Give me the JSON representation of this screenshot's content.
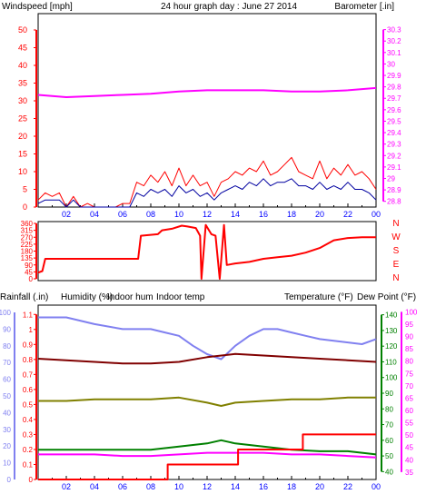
{
  "title": "24 hour graph day : June 27 2014",
  "colors": {
    "wind": "#ff0000",
    "gust_avg": "#0000a0",
    "baro": "#ff00ff",
    "dir": "#ff0000",
    "rain": "#ff0000",
    "humidity": "#8080f0",
    "indoor_hum": "#808000",
    "indoor_temp": "#800000",
    "temperature": "#008000",
    "dew_point": "#ff00ff",
    "title": "#0000c0",
    "axis_blue": "#0000ff"
  },
  "chart_data": [
    {
      "type": "line",
      "name": "wind-baro",
      "left_axis": {
        "label": "Windspeed [mph]",
        "ticks": [
          "0",
          "5",
          "10",
          "15",
          "20",
          "25",
          "30",
          "35",
          "40",
          "45",
          "50"
        ],
        "ylim": [
          0,
          50
        ]
      },
      "right_axis": {
        "label": "Barometer [.in]",
        "ticks": [
          "28.8",
          "28.9",
          "29",
          "29.1",
          "29.2",
          "29.3",
          "29.4",
          "29.5",
          "29.6",
          "29.7",
          "29.8",
          "29.9",
          "30",
          "30.1",
          "30.2",
          "30.3"
        ],
        "ylim": [
          28.75,
          30.4
        ]
      },
      "x_ticks": [
        "02",
        "04",
        "06",
        "08",
        "10",
        "12",
        "14",
        "16",
        "18",
        "20",
        "22",
        "00"
      ],
      "series": [
        {
          "key": "windspeed",
          "color_key": "wind",
          "x": [
            0,
            0.5,
            1,
            1.5,
            2,
            2.5,
            3,
            3.5,
            4,
            4.5,
            5,
            5.5,
            6,
            6.5,
            7,
            7.5,
            8,
            8.5,
            9,
            9.5,
            10,
            10.5,
            11,
            11.5,
            12,
            12.5,
            13,
            13.5,
            14,
            14.5,
            15,
            15.5,
            16,
            16.5,
            17,
            17.5,
            18,
            18.5,
            19,
            19.5,
            20,
            20.5,
            21,
            21.5,
            22,
            22.5,
            23,
            23.5,
            24
          ],
          "values": [
            2,
            4,
            3,
            4,
            0,
            3,
            0,
            1,
            0,
            0,
            0,
            0,
            1,
            1,
            7,
            6,
            9,
            7,
            10,
            6,
            11,
            6,
            9,
            6,
            7,
            3,
            7,
            8,
            10,
            9,
            11,
            10,
            13,
            9,
            10,
            12,
            14,
            10,
            9,
            8,
            13,
            8,
            11,
            9,
            12,
            9,
            10,
            8,
            5
          ]
        },
        {
          "key": "average_wind",
          "color_key": "gust_avg",
          "x": [
            0,
            0.5,
            1,
            1.5,
            2,
            2.5,
            3,
            3.5,
            4,
            4.5,
            5,
            5.5,
            6,
            6.5,
            7,
            7.5,
            8,
            8.5,
            9,
            9.5,
            10,
            10.5,
            11,
            11.5,
            12,
            12.5,
            13,
            13.5,
            14,
            14.5,
            15,
            15.5,
            16,
            16.5,
            17,
            17.5,
            18,
            18.5,
            19,
            19.5,
            20,
            20.5,
            21,
            21.5,
            22,
            22.5,
            23,
            23.5,
            24
          ],
          "values": [
            1,
            2,
            2,
            2,
            0,
            2,
            0,
            0,
            0,
            0,
            0,
            0,
            0,
            0,
            4,
            3,
            5,
            4,
            5,
            3,
            6,
            4,
            5,
            3,
            4,
            2,
            4,
            5,
            6,
            5,
            7,
            6,
            8,
            6,
            7,
            7,
            8,
            6,
            6,
            5,
            7,
            5,
            6,
            5,
            7,
            5,
            5,
            4,
            2
          ]
        },
        {
          "key": "barometer",
          "color_key": "baro",
          "axis": "right",
          "x": [
            0,
            2,
            4,
            6,
            8,
            10,
            12,
            14,
            16,
            18,
            20,
            22,
            24
          ],
          "values": [
            29.73,
            29.71,
            29.72,
            29.73,
            29.74,
            29.76,
            29.77,
            29.77,
            29.77,
            29.76,
            29.76,
            29.77,
            29.79
          ]
        }
      ]
    },
    {
      "type": "line",
      "name": "wind-direction",
      "left_axis": {
        "ticks": [
          "0",
          "45",
          "90",
          "135",
          "180",
          "225",
          "270",
          "315",
          "360"
        ],
        "ylim": [
          0,
          360
        ]
      },
      "right_axis": {
        "ticks": [
          "N",
          "W",
          "S",
          "E",
          "N"
        ]
      },
      "series": [
        {
          "key": "direction",
          "color_key": "dir",
          "x": [
            0,
            0.3,
            0.5,
            7.1,
            7.3,
            8.5,
            8.8,
            9.5,
            10.2,
            10.6,
            11.2,
            11.5,
            11.6,
            11.9,
            12.3,
            12.6,
            12.9,
            13.2,
            13.4,
            14,
            15,
            16,
            17,
            18,
            19,
            20,
            21,
            22,
            23,
            24
          ],
          "values": [
            40,
            50,
            130,
            130,
            280,
            290,
            315,
            325,
            345,
            340,
            330,
            280,
            0,
            350,
            290,
            280,
            0,
            350,
            90,
            100,
            110,
            130,
            140,
            150,
            170,
            200,
            250,
            265,
            270,
            270
          ]
        }
      ]
    },
    {
      "type": "line",
      "name": "rain-humidity-temperature",
      "axes": {
        "rainfall": {
          "label": "Rainfall (.in)",
          "ticks": [
            "0",
            "0.1",
            "0.2",
            "0.3",
            "0.4",
            "0.5",
            "0.6",
            "0.7",
            "0.8",
            "0.9",
            "1",
            "1.1"
          ],
          "ylim": [
            0,
            1.15
          ]
        },
        "humidity": {
          "label": "Humidity (%)",
          "ticks": [
            "0",
            "10",
            "20",
            "30",
            "40",
            "50",
            "60",
            "70",
            "80",
            "90",
            "100"
          ],
          "ylim": [
            0,
            100
          ]
        },
        "temperature": {
          "label": "Temperature (°F)",
          "ticks": [
            "40",
            "50",
            "60",
            "70",
            "80",
            "90",
            "100",
            "110",
            "120",
            "130",
            "140"
          ],
          "ylim": [
            35,
            145
          ]
        },
        "dew_point": {
          "label": "Dew Point (°F)",
          "ticks": [
            "35",
            "40",
            "45",
            "50",
            "55",
            "60",
            "65",
            "70",
            "75",
            "80",
            "85",
            "90",
            "95",
            "100"
          ],
          "ylim": [
            32,
            102
          ]
        }
      },
      "legend": [
        "Indoor hum",
        "Indoor temp"
      ],
      "series": [
        {
          "key": "humidity",
          "color_key": "humidity",
          "axis": "humidity",
          "x": [
            0,
            2,
            4,
            6,
            8,
            9,
            10,
            11,
            12,
            13,
            14,
            15,
            16,
            17,
            18,
            19,
            20,
            21,
            22,
            23,
            24
          ],
          "values": [
            97,
            97,
            93,
            90,
            90,
            88,
            86,
            80,
            75,
            72,
            80,
            86,
            90,
            90,
            88,
            86,
            84,
            83,
            82,
            81,
            84
          ]
        },
        {
          "key": "indoor_temp",
          "color_key": "indoor_temp",
          "axis": "temperature",
          "x": [
            0,
            2,
            4,
            6,
            8,
            10,
            12,
            14,
            16,
            18,
            20,
            22,
            24
          ],
          "values": [
            112,
            111,
            110,
            109,
            109,
            110,
            113,
            115,
            114,
            113,
            112,
            111,
            110
          ]
        },
        {
          "key": "indoor_hum",
          "color_key": "indoor_hum",
          "axis": "humidity",
          "x": [
            0,
            2,
            4,
            6,
            8,
            10,
            12,
            13,
            14,
            16,
            18,
            20,
            22,
            24
          ],
          "values": [
            47,
            47,
            48,
            48,
            48,
            49,
            46,
            44,
            46,
            47,
            48,
            48,
            49,
            49
          ]
        },
        {
          "key": "temperature",
          "color_key": "temperature",
          "axis": "temperature",
          "x": [
            0,
            2,
            4,
            6,
            8,
            10,
            12,
            13,
            14,
            16,
            18,
            20,
            22,
            24
          ],
          "values": [
            54,
            54,
            54,
            54,
            54,
            56,
            58,
            60,
            58,
            56,
            54,
            53,
            53,
            51
          ]
        },
        {
          "key": "dew_point",
          "color_key": "dew_point",
          "axis": "temperature",
          "x": [
            0,
            2,
            4,
            6,
            8,
            10,
            12,
            14,
            16,
            18,
            20,
            22,
            24
          ],
          "values": [
            51,
            51,
            51,
            50,
            50,
            51,
            52,
            52,
            52,
            51,
            51,
            50,
            49
          ]
        },
        {
          "key": "rainfall",
          "color_key": "rain",
          "axis": "rainfall",
          "x": [
            0,
            8.2,
            9.2,
            12.2,
            14.2,
            15.5,
            18.8,
            24
          ],
          "values": [
            0,
            0,
            0.1,
            0.1,
            0.2,
            0.2,
            0.3,
            0.3
          ]
        }
      ]
    }
  ]
}
